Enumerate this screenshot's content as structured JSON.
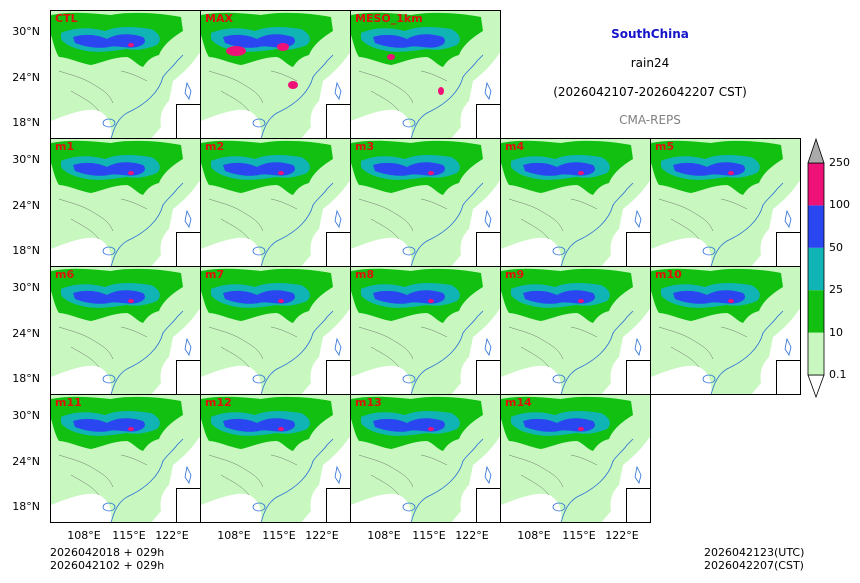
{
  "header": {
    "region": "SouthChina",
    "variable": "rain24",
    "period": "(2026042107-2026042207 CST)",
    "model": "CMA-REPS"
  },
  "colors": {
    "region": "#1414c8",
    "label": "#e0110b",
    "model": "#808080",
    "levels": [
      "#c8f8c0",
      "#11c011",
      "#10b4b4",
      "#2a46f0",
      "#ee1177",
      "#aaaaaa"
    ]
  },
  "panels": [
    {
      "name": "CTL",
      "intensity": "mid"
    },
    {
      "name": "MAX",
      "intensity": "max"
    },
    {
      "name": "MESO_1km",
      "intensity": "meso"
    },
    {
      "name": "m1",
      "intensity": "mid"
    },
    {
      "name": "m2",
      "intensity": "mid"
    },
    {
      "name": "m3",
      "intensity": "mid"
    },
    {
      "name": "m4",
      "intensity": "mid"
    },
    {
      "name": "m5",
      "intensity": "mid"
    },
    {
      "name": "m6",
      "intensity": "mid"
    },
    {
      "name": "m7",
      "intensity": "mid"
    },
    {
      "name": "m8",
      "intensity": "mid"
    },
    {
      "name": "m9",
      "intensity": "mid"
    },
    {
      "name": "m10",
      "intensity": "mid"
    },
    {
      "name": "m11",
      "intensity": "mid"
    },
    {
      "name": "m12",
      "intensity": "mid"
    },
    {
      "name": "m13",
      "intensity": "mid"
    },
    {
      "name": "m14",
      "intensity": "mid"
    }
  ],
  "axes": {
    "lat_ticks": [
      "30°N",
      "24°N",
      "18°N"
    ],
    "lon_ticks": [
      "108°E",
      "115°E",
      "122°E"
    ]
  },
  "colorbar": {
    "levels": [
      "0.1",
      "10",
      "25",
      "50",
      "100",
      "250"
    ]
  },
  "footer": {
    "init_utc": "2026042018  +  029h",
    "init_cst": "2026042102  +  029h",
    "valid_utc": "2026042123(UTC)",
    "valid_cst": "2026042207(CST)"
  }
}
